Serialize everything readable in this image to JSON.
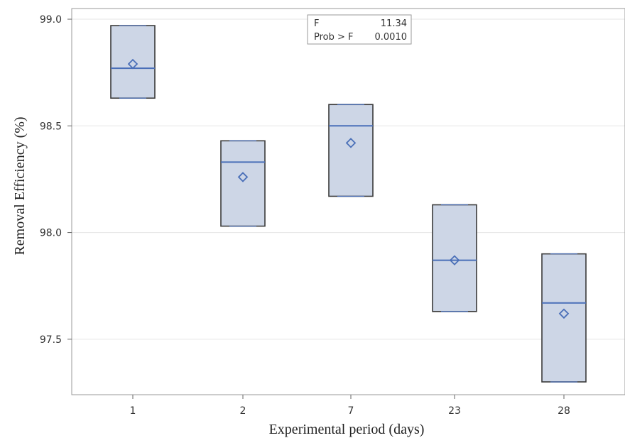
{
  "chart_data": {
    "type": "box",
    "xlabel": "Experimental period (days)",
    "ylabel": "Removal Efficiency (%)",
    "ylim": [
      97.24,
      99.05
    ],
    "yticks": [
      "97.5",
      "98.0",
      "98.5",
      "99.0"
    ],
    "ytick_values": [
      97.5,
      98.0,
      98.5,
      99.0
    ],
    "grid": true,
    "categories": [
      "1",
      "2",
      "7",
      "23",
      "28"
    ],
    "boxes": [
      {
        "category": "1",
        "min": 98.63,
        "max": 98.97,
        "median": 98.77,
        "mean": 98.79
      },
      {
        "category": "2",
        "min": 98.03,
        "max": 98.43,
        "median": 98.33,
        "mean": 98.26
      },
      {
        "category": "7",
        "min": 98.17,
        "max": 98.6,
        "median": 98.5,
        "mean": 98.42
      },
      {
        "category": "23",
        "min": 97.63,
        "max": 98.13,
        "median": 97.87,
        "mean": 97.87
      },
      {
        "category": "28",
        "min": 97.3,
        "max": 97.9,
        "median": 97.67,
        "mean": 97.62
      }
    ],
    "stats_box": {
      "rows": [
        {
          "label": "F",
          "value": "11.34"
        },
        {
          "label": "Prob > F",
          "value": "0.0010"
        }
      ]
    }
  },
  "colors": {
    "box_fill": "#cdd6e6",
    "box_stroke": "#3a3a3a",
    "median": "#4a6fb8",
    "mean_marker": "#4a6fb8",
    "grid": "#e6e6e6",
    "frame": "#9a9a9a"
  }
}
